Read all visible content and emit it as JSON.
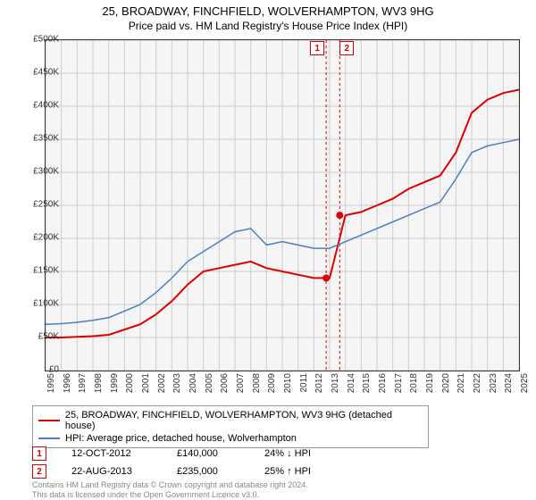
{
  "title": "25, BROADWAY, FINCHFIELD, WOLVERHAMPTON, WV3 9HG",
  "subtitle": "Price paid vs. HM Land Registry's House Price Index (HPI)",
  "chart": {
    "type": "line",
    "background_color": "#f5f5f5",
    "grid_color": "#cccccc",
    "border_color": "#333333",
    "ylim": [
      0,
      500000
    ],
    "ytick_step": 50000,
    "yticklabels": [
      "£0",
      "£50K",
      "£100K",
      "£150K",
      "£200K",
      "£250K",
      "£300K",
      "£350K",
      "£400K",
      "£450K",
      "£500K"
    ],
    "xvalues_years": [
      1995,
      1996,
      1997,
      1998,
      1999,
      2000,
      2001,
      2002,
      2003,
      2004,
      2005,
      2006,
      2007,
      2008,
      2009,
      2010,
      2011,
      2012,
      2013,
      2014,
      2015,
      2016,
      2017,
      2018,
      2019,
      2020,
      2021,
      2022,
      2023,
      2024,
      2025
    ],
    "series": [
      {
        "name": "property",
        "label": "25, BROADWAY, FINCHFIELD, WOLVERHAMPTON, WV3 9HG (detached house)",
        "color": "#dd0000",
        "width": 2,
        "y": [
          50000,
          50000,
          51000,
          52000,
          54000,
          62000,
          70000,
          85000,
          105000,
          130000,
          150000,
          155000,
          160000,
          165000,
          155000,
          150000,
          145000,
          140000,
          140000,
          235000,
          240000,
          250000,
          260000,
          275000,
          285000,
          295000,
          330000,
          390000,
          410000,
          420000,
          425000
        ]
      },
      {
        "name": "hpi",
        "label": "HPI: Average price, detached house, Wolverhampton",
        "color": "#4a7fbf",
        "width": 1.5,
        "y": [
          70000,
          71000,
          73000,
          76000,
          80000,
          90000,
          100000,
          118000,
          140000,
          165000,
          180000,
          195000,
          210000,
          215000,
          190000,
          195000,
          190000,
          185000,
          185000,
          195000,
          205000,
          215000,
          225000,
          235000,
          245000,
          255000,
          290000,
          330000,
          340000,
          345000,
          350000
        ]
      }
    ],
    "transactions": [
      {
        "id": "1",
        "date": "12-OCT-2012",
        "price": "£140,000",
        "delta": "24% ↓ HPI",
        "xyear": 2012.78,
        "yvalue": 140000
      },
      {
        "id": "2",
        "date": "22-AUG-2013",
        "price": "£235,000",
        "delta": "25% ↑ HPI",
        "xyear": 2013.64,
        "yvalue": 235000
      }
    ],
    "marker_vline_color": "#d00",
    "marker_vline_dash": "3,3",
    "marker_dot_radius": 4
  },
  "footnote_line1": "Contains HM Land Registry data © Crown copyright and database right 2024.",
  "footnote_line2": "This data is licensed under the Open Government Licence v3.0."
}
